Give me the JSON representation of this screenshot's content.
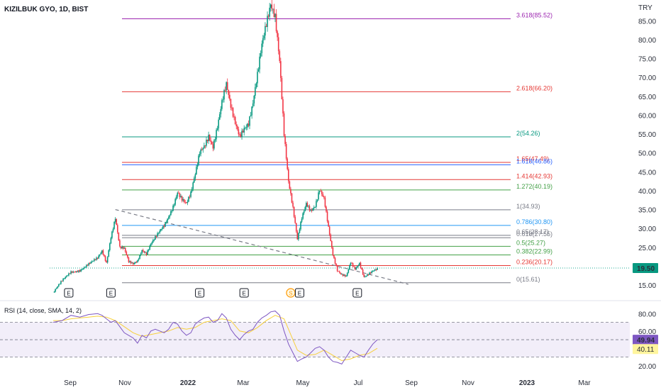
{
  "header": {
    "symbol": "KIZILBUK GYO, 1D, BIST",
    "currency": "TRY"
  },
  "chart_data": {
    "type": "candlestick",
    "price_axis": {
      "ticks": [
        15,
        20,
        25,
        30,
        35,
        40,
        45,
        50,
        55,
        60,
        65,
        70,
        75,
        80,
        85
      ],
      "tick_labels": [
        "15.00",
        "20.00",
        "25.00",
        "30.00",
        "35.00",
        "40.00",
        "45.00",
        "50.00",
        "55.00",
        "60.00",
        "65.00",
        "70.00",
        "75.00",
        "80.00",
        "85.00"
      ],
      "ylim": [
        13.5,
        90.5
      ],
      "last_price": 19.5,
      "last_price_label": "19.50"
    },
    "time_axis": {
      "labels": [
        "Sep",
        "Nov",
        "2022",
        "Mar",
        "May",
        "Jul",
        "Sep",
        "Nov",
        "2023",
        "Mar"
      ],
      "bold": [
        "2022",
        "2023"
      ]
    },
    "fib_levels": [
      {
        "label": "3.618(85.52)",
        "value": 85.52,
        "color": "#9c27b0"
      },
      {
        "label": "2.618(66.20)",
        "value": 66.2,
        "color": "#e53935"
      },
      {
        "label": "2(54.26)",
        "value": 54.26,
        "color": "#089981"
      },
      {
        "label": "1.65(47.49)",
        "value": 47.49,
        "color": "#e53935"
      },
      {
        "label": "1.618(46.86)",
        "value": 46.86,
        "color": "#2962ff"
      },
      {
        "label": "1.414(42.93)",
        "value": 42.93,
        "color": "#e53935"
      },
      {
        "label": "1.272(40.19)",
        "value": 40.19,
        "color": "#43a047"
      },
      {
        "label": "1(34.93)",
        "value": 34.93,
        "color": "#787b86"
      },
      {
        "label": "0.786(30.80)",
        "value": 30.8,
        "color": "#2196f3"
      },
      {
        "label": "0.65(28.17)",
        "value": 28.17,
        "color": "#787b86"
      },
      {
        "label": "0.618(27.55)",
        "value": 27.55,
        "color": "#787b86"
      },
      {
        "label": "0.5(25.27)",
        "value": 25.27,
        "color": "#43a047"
      },
      {
        "label": "0.382(22.99)",
        "value": 22.99,
        "color": "#43a047"
      },
      {
        "label": "0.236(20.17)",
        "value": 20.17,
        "color": "#e53935"
      },
      {
        "label": "0(15.61)",
        "value": 15.61,
        "color": "#787b86"
      }
    ],
    "price_path": [
      [
        0,
        13.0
      ],
      [
        4,
        16.0
      ],
      [
        8,
        18.5
      ],
      [
        12,
        19.0
      ],
      [
        16,
        20.5
      ],
      [
        20,
        22.0
      ],
      [
        22,
        24.0
      ],
      [
        24,
        21.0
      ],
      [
        26,
        28.0
      ],
      [
        28,
        33.0
      ],
      [
        30,
        25.0
      ],
      [
        32,
        24.5
      ],
      [
        34,
        21.0
      ],
      [
        36,
        20.5
      ],
      [
        38,
        21.5
      ],
      [
        40,
        24.5
      ],
      [
        42,
        23.5
      ],
      [
        44,
        26.0
      ],
      [
        46,
        27.5
      ],
      [
        48,
        29.0
      ],
      [
        50,
        30.5
      ],
      [
        52,
        33.0
      ],
      [
        54,
        36.0
      ],
      [
        56,
        40.0
      ],
      [
        58,
        38.0
      ],
      [
        60,
        36.5
      ],
      [
        62,
        39.0
      ],
      [
        64,
        44.0
      ],
      [
        66,
        50.0
      ],
      [
        68,
        52.0
      ],
      [
        70,
        55.0
      ],
      [
        72,
        52.0
      ],
      [
        74,
        57.0
      ],
      [
        76,
        63.0
      ],
      [
        78,
        67.5
      ],
      [
        80,
        62.0
      ],
      [
        82,
        58.0
      ],
      [
        84,
        55.0
      ],
      [
        86,
        57.0
      ],
      [
        88,
        58.0
      ],
      [
        90,
        63.0
      ],
      [
        92,
        70.0
      ],
      [
        94,
        78.0
      ],
      [
        96,
        84.0
      ],
      [
        98,
        90.0
      ],
      [
        100,
        87.0
      ],
      [
        102,
        75.0
      ],
      [
        104,
        55.0
      ],
      [
        106,
        42.0
      ],
      [
        108,
        35.0
      ],
      [
        110,
        27.0
      ],
      [
        112,
        33.0
      ],
      [
        114,
        37.0
      ],
      [
        116,
        35.0
      ],
      [
        118,
        36.0
      ],
      [
        120,
        40.0
      ],
      [
        122,
        37.5
      ],
      [
        124,
        30.0
      ],
      [
        126,
        23.0
      ],
      [
        128,
        19.0
      ],
      [
        130,
        18.0
      ],
      [
        132,
        17.5
      ],
      [
        134,
        21.0
      ],
      [
        136,
        19.0
      ],
      [
        138,
        20.5
      ],
      [
        140,
        17.0
      ],
      [
        142,
        18.0
      ],
      [
        144,
        19.0
      ],
      [
        146,
        19.5
      ]
    ],
    "trendline": {
      "from": [
        28,
        35.0
      ],
      "to": [
        160,
        15.2
      ]
    },
    "events": [
      {
        "label": "E",
        "x": 7
      },
      {
        "label": "E",
        "x": 26
      },
      {
        "label": "E",
        "x": 66
      },
      {
        "label": "E",
        "x": 86
      },
      {
        "label": "S",
        "x": 107
      },
      {
        "label": "E",
        "x": 111
      },
      {
        "label": "E",
        "x": 137
      }
    ],
    "rsi": {
      "title": "RSI (14, close, SMA, 14, 2)",
      "ticks": [
        20,
        40,
        60,
        80
      ],
      "tick_labels": [
        "20.00",
        "40.00",
        "60.00",
        "80.00"
      ],
      "ylim": [
        15,
        90
      ],
      "band": [
        30,
        70
      ],
      "middle": 50,
      "rsi_value": 49.94,
      "rsi_label": "49.94",
      "sma_value": 40.11,
      "sma_label": "40.11",
      "rsi_path": [
        [
          0,
          70
        ],
        [
          4,
          72
        ],
        [
          8,
          78
        ],
        [
          12,
          76
        ],
        [
          16,
          79
        ],
        [
          20,
          80
        ],
        [
          22,
          78
        ],
        [
          24,
          74
        ],
        [
          26,
          70
        ],
        [
          28,
          72
        ],
        [
          30,
          65
        ],
        [
          32,
          58
        ],
        [
          34,
          55
        ],
        [
          36,
          52
        ],
        [
          38,
          46
        ],
        [
          40,
          55
        ],
        [
          42,
          52
        ],
        [
          44,
          60
        ],
        [
          46,
          62
        ],
        [
          48,
          60
        ],
        [
          50,
          58
        ],
        [
          52,
          62
        ],
        [
          54,
          70
        ],
        [
          56,
          68
        ],
        [
          58,
          60
        ],
        [
          60,
          55
        ],
        [
          62,
          58
        ],
        [
          64,
          68
        ],
        [
          66,
          72
        ],
        [
          68,
          75
        ],
        [
          70,
          76
        ],
        [
          72,
          70
        ],
        [
          74,
          72
        ],
        [
          76,
          80
        ],
        [
          78,
          75
        ],
        [
          80,
          62
        ],
        [
          82,
          55
        ],
        [
          84,
          50
        ],
        [
          86,
          56
        ],
        [
          88,
          60
        ],
        [
          90,
          62
        ],
        [
          92,
          70
        ],
        [
          94,
          75
        ],
        [
          96,
          78
        ],
        [
          98,
          82
        ],
        [
          100,
          83
        ],
        [
          102,
          78
        ],
        [
          104,
          60
        ],
        [
          106,
          45
        ],
        [
          108,
          35
        ],
        [
          110,
          25
        ],
        [
          112,
          28
        ],
        [
          114,
          30
        ],
        [
          116,
          35
        ],
        [
          118,
          40
        ],
        [
          120,
          42
        ],
        [
          122,
          38
        ],
        [
          124,
          30
        ],
        [
          126,
          25
        ],
        [
          128,
          24
        ],
        [
          130,
          22
        ],
        [
          132,
          30
        ],
        [
          134,
          38
        ],
        [
          136,
          35
        ],
        [
          138,
          32
        ],
        [
          140,
          30
        ],
        [
          142,
          38
        ],
        [
          144,
          45
        ],
        [
          146,
          49.94
        ]
      ],
      "sma_path": [
        [
          0,
          72
        ],
        [
          4,
          72
        ],
        [
          8,
          74
        ],
        [
          12,
          75
        ],
        [
          16,
          76
        ],
        [
          20,
          77
        ],
        [
          24,
          76
        ],
        [
          28,
          72
        ],
        [
          32,
          65
        ],
        [
          36,
          58
        ],
        [
          40,
          54
        ],
        [
          44,
          56
        ],
        [
          48,
          58
        ],
        [
          52,
          60
        ],
        [
          56,
          64
        ],
        [
          60,
          62
        ],
        [
          64,
          64
        ],
        [
          68,
          70
        ],
        [
          72,
          72
        ],
        [
          76,
          74
        ],
        [
          80,
          72
        ],
        [
          84,
          60
        ],
        [
          88,
          58
        ],
        [
          92,
          64
        ],
        [
          96,
          72
        ],
        [
          100,
          78
        ],
        [
          104,
          74
        ],
        [
          106,
          62
        ],
        [
          108,
          50
        ],
        [
          110,
          38
        ],
        [
          114,
          32
        ],
        [
          118,
          33
        ],
        [
          122,
          38
        ],
        [
          126,
          32
        ],
        [
          130,
          26
        ],
        [
          134,
          28
        ],
        [
          138,
          32
        ],
        [
          142,
          34
        ],
        [
          146,
          40.11
        ]
      ]
    }
  }
}
